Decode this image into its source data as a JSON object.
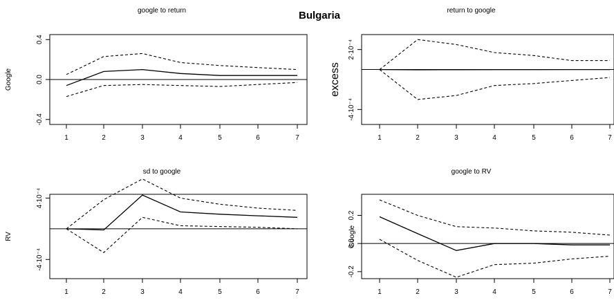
{
  "figure": {
    "title": "Bulgaria"
  },
  "chart_data": [
    {
      "type": "line",
      "title": "google to return",
      "xlabel": "",
      "ylabel": "Google",
      "x": [
        1,
        2,
        3,
        4,
        5,
        6,
        7
      ],
      "xticks": [
        "1",
        "2",
        "3",
        "4",
        "5",
        "6",
        "7"
      ],
      "yticks": [
        "0.4",
        "0.0",
        "-0.4"
      ],
      "ylim": [
        -0.45,
        0.45
      ],
      "grid": false,
      "series": [
        {
          "role": "upper",
          "values": [
            0.05,
            0.23,
            0.26,
            0.17,
            0.14,
            0.12,
            0.1
          ]
        },
        {
          "role": "irf",
          "values": [
            -0.06,
            0.08,
            0.1,
            0.06,
            0.04,
            0.04,
            0.04
          ]
        },
        {
          "role": "lower",
          "values": [
            -0.17,
            -0.06,
            -0.05,
            -0.06,
            -0.07,
            -0.05,
            -0.03
          ]
        }
      ],
      "reference_line": 0
    },
    {
      "type": "line",
      "title": "return to google",
      "xlabel": "",
      "ylabel": "excess",
      "x": [
        1,
        2,
        3,
        4,
        5,
        6,
        7
      ],
      "xticks": [
        "1",
        "2",
        "3",
        "4",
        "5",
        "6",
        "7"
      ],
      "yticks": [
        "2·10⁻⁴",
        "-4·10⁻⁴"
      ],
      "yticks_values": [
        0.0002,
        -0.0004
      ],
      "ylim": [
        -0.00055,
        0.00035
      ],
      "grid": false,
      "series": [
        {
          "role": "upper",
          "values": [
            0.0,
            0.0003,
            0.00025,
            0.00017,
            0.00014,
            9e-05,
            9e-05
          ]
        },
        {
          "role": "irf",
          "values": [
            0.0,
            -3e-06,
            -2e-06,
            -1e-06,
            -1e-06,
            0.0,
            0.0
          ]
        },
        {
          "role": "lower",
          "values": [
            0.0,
            -0.0003,
            -0.00026,
            -0.00016,
            -0.00014,
            -0.00011,
            -8e-05
          ]
        }
      ],
      "reference_line": 0
    },
    {
      "type": "line",
      "title": "sd to google",
      "xlabel": "",
      "ylabel": "RV",
      "x": [
        1,
        2,
        3,
        4,
        5,
        6,
        7
      ],
      "xticks": [
        "1",
        "2",
        "3",
        "4",
        "5",
        "6",
        "7"
      ],
      "yticks": [
        "4·10⁻⁴",
        "-4·10⁻⁴"
      ],
      "yticks_values": [
        0.0004,
        -0.0004
      ],
      "ylim": [
        -0.00065,
        0.00045
      ],
      "grid": false,
      "series": [
        {
          "role": "upper",
          "values": [
            0.0,
            0.00038,
            0.00065,
            0.0004,
            0.00032,
            0.00027,
            0.00024
          ]
        },
        {
          "role": "irf",
          "values": [
            0.0,
            -1.5e-05,
            0.00044,
            0.00022,
            0.00019,
            0.00017,
            0.00015
          ]
        },
        {
          "role": "lower",
          "values": [
            0.0,
            -0.00031,
            0.00015,
            4e-05,
            3e-05,
            2e-05,
            0.0
          ]
        }
      ],
      "reference_line": 0
    },
    {
      "type": "line",
      "title": "google to RV",
      "xlabel": "",
      "ylabel": "Google",
      "x": [
        1,
        2,
        3,
        4,
        5,
        6,
        7
      ],
      "xticks": [
        "1",
        "2",
        "3",
        "4",
        "5",
        "6",
        "7"
      ],
      "yticks": [
        "0.2",
        "0.0",
        "-0.2"
      ],
      "ylim": [
        -0.25,
        0.35
      ],
      "grid": false,
      "series": [
        {
          "role": "upper",
          "values": [
            0.31,
            0.2,
            0.12,
            0.11,
            0.09,
            0.08,
            0.06
          ]
        },
        {
          "role": "irf",
          "values": [
            0.19,
            0.07,
            -0.05,
            0.0,
            0.0,
            -0.01,
            -0.01
          ]
        },
        {
          "role": "lower",
          "values": [
            0.03,
            -0.12,
            -0.24,
            -0.15,
            -0.14,
            -0.11,
            -0.09
          ]
        }
      ],
      "reference_line": 0
    }
  ]
}
